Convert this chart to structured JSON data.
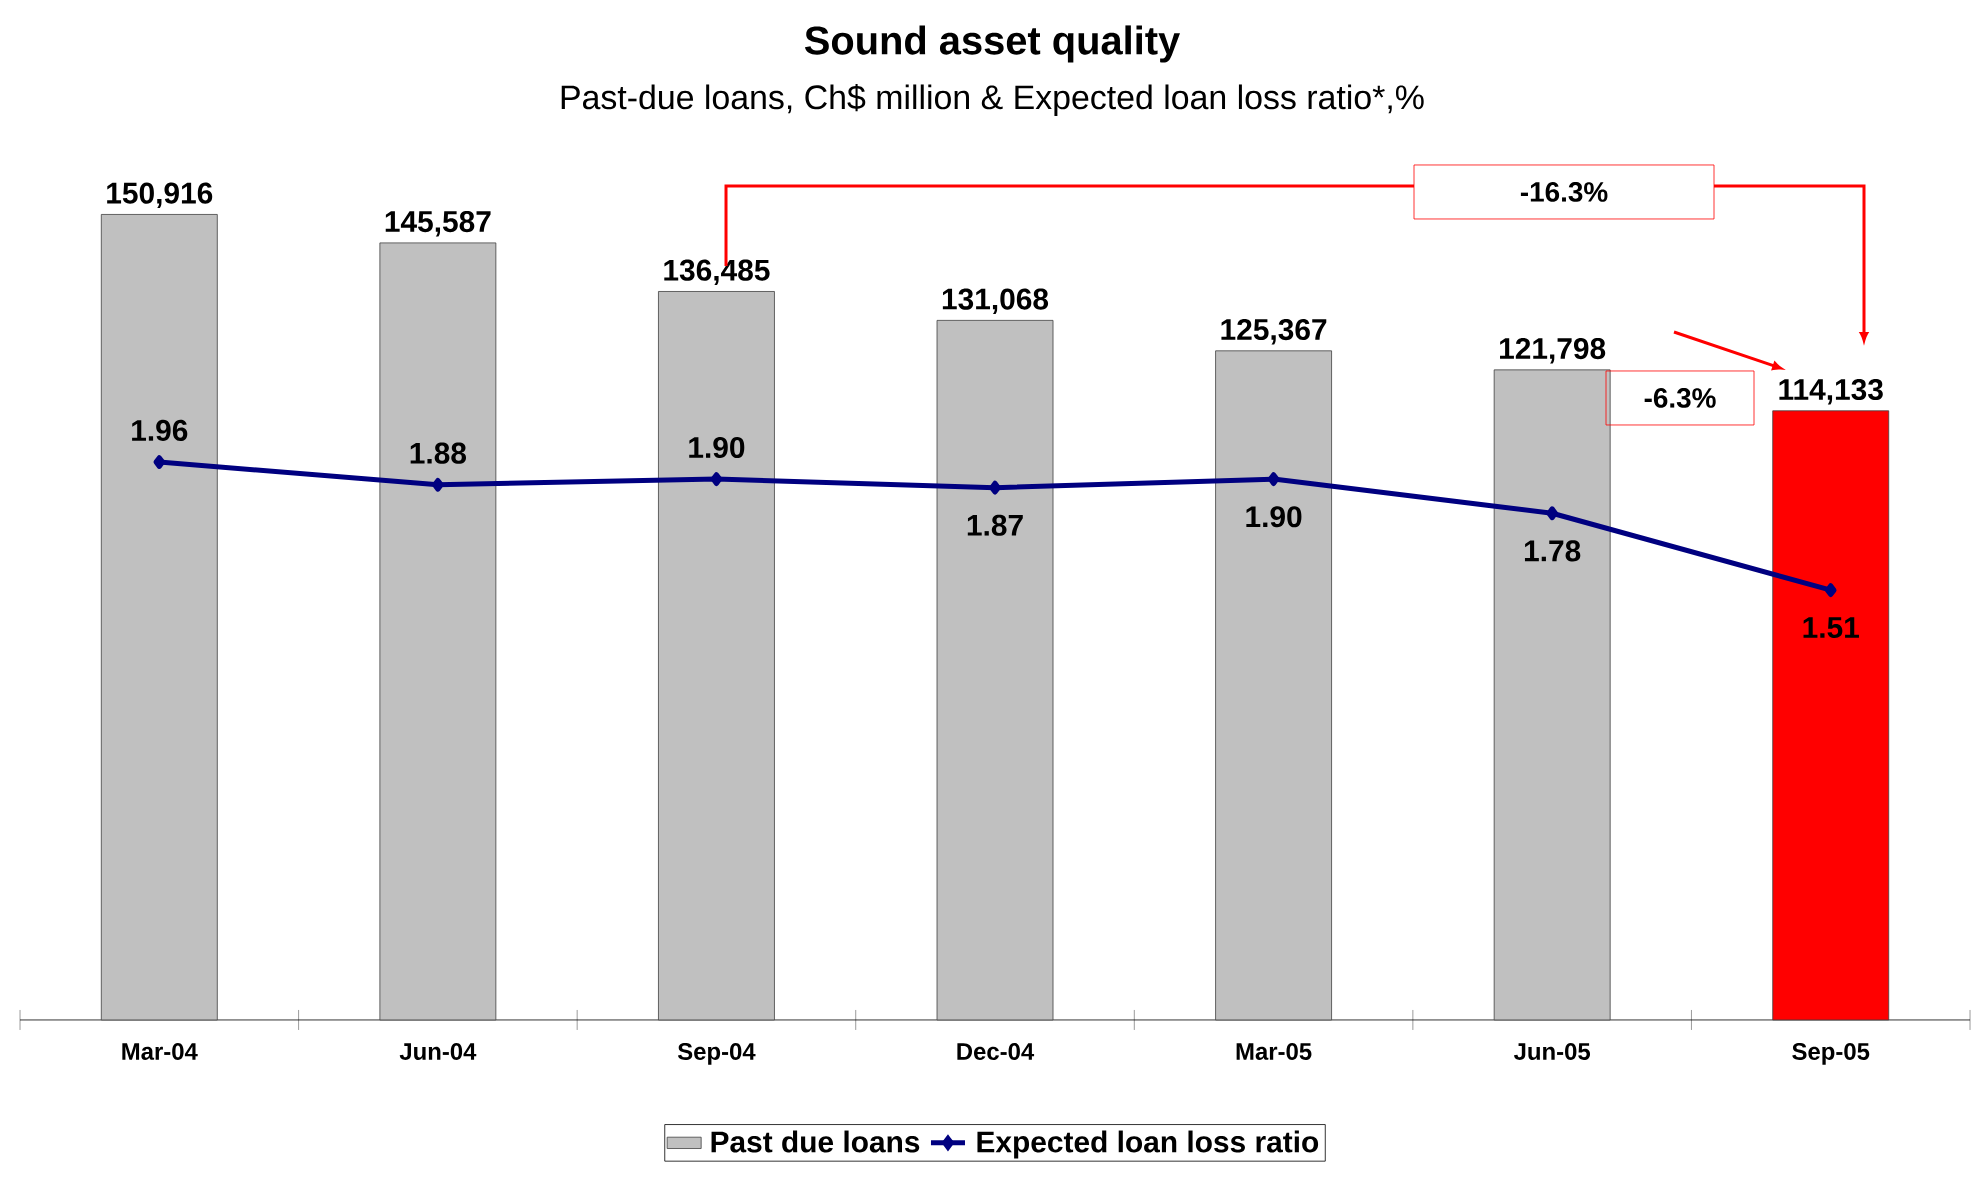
{
  "chart_data": {
    "type": "bar",
    "title": "Sound asset quality",
    "subtitle": "Past-due loans, Ch$ million & Expected loan loss ratio*,%",
    "categories": [
      "Mar-04",
      "Jun-04",
      "Sep-04",
      "Dec-04",
      "Mar-05",
      "Jun-05",
      "Sep-05"
    ],
    "series": [
      {
        "name": "Past due loans",
        "colors": [
          "#c0c0c0",
          "#c0c0c0",
          "#c0c0c0",
          "#c0c0c0",
          "#c0c0c0",
          "#c0c0c0",
          "#ff0000"
        ],
        "values": [
          150916,
          145587,
          136485,
          131068,
          125367,
          121798,
          114133
        ],
        "value_labels": [
          "150,916",
          "145,587",
          "136,485",
          "131,068",
          "125,367",
          "121,798",
          "114,133"
        ]
      },
      {
        "name": "Expected loan loss ratio",
        "type": "line",
        "axis": "y2",
        "color": "#000080",
        "marker": "diamond",
        "line_style": "solid",
        "values": [
          1.96,
          1.88,
          1.9,
          1.87,
          1.9,
          1.78,
          1.51
        ],
        "value_labels": [
          "1.96",
          "1.88",
          "1.90",
          "1.87",
          "1.90",
          "1.78",
          "1.51"
        ]
      }
    ],
    "ylim": [
      0,
      160000
    ],
    "y2lim": [
      0,
      3
    ],
    "tick_labels": "x",
    "legend": "bottom",
    "grid": false,
    "annotations": [
      "-16.3%",
      "-6.3%"
    ]
  }
}
